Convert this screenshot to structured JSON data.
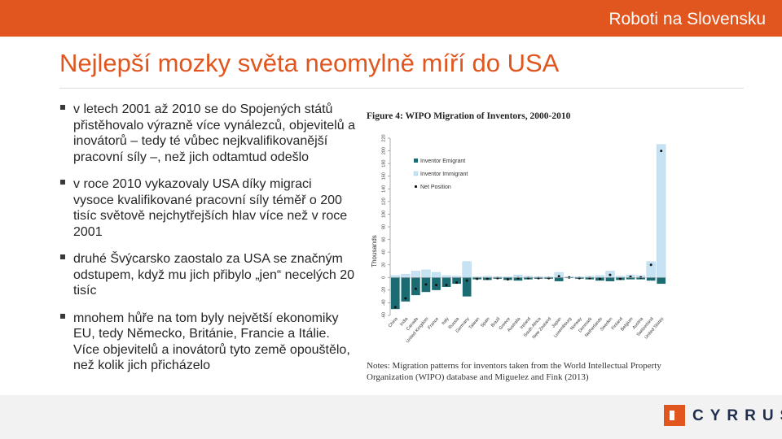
{
  "header": {
    "title": "Roboti na Slovensku"
  },
  "slide": {
    "title": "Nejlepší mozky světa neomylně míří do USA"
  },
  "bullets": [
    "v letech 2001 až 2010 se do Spojených států přistěhovalo výrazně více vynálezců, objevitelů a inovátorů – tedy té vůbec nejkvalifikovanější pracovní síly –, než jich odtamtud odešlo",
    "v roce 2010 vykazovaly USA díky migraci vysoce kvalifikované pracovní síly téměř o 200 tisíc světově nejchytřejších hlav více než v roce 2001",
    "druhé Švýcarsko zaostalo za USA se značným odstupem, když mu jich přibylo „jen“ necelých 20 tisíc",
    "mnohem hůře na tom byly největší ekonomiky EU, tedy Německo, Británie, Francie a Itálie. Více objevitelů a inovátorů tyto země opouštělo, než kolik jich přicházelo"
  ],
  "logo": {
    "text": "CYRRUS"
  },
  "figure": {
    "title": "Figure 4: WIPO Migration of Inventors, 2000-2010",
    "notes": "Notes: Migration patterns for inventors taken from the World Intellectual Property Organization (WIPO) database and Miguelez and Fink (2013)"
  },
  "chart_data": {
    "type": "bar",
    "title": "Figure 4: WIPO Migration of Inventors, 2000-2010",
    "ylabel": "Thousands",
    "xlabel": "",
    "ylim": [
      -60,
      220
    ],
    "yticks": [
      -60,
      -40,
      -20,
      0,
      20,
      40,
      60,
      80,
      100,
      120,
      140,
      160,
      180,
      200,
      220
    ],
    "grid": false,
    "legend_position": "top-left",
    "categories": [
      "China",
      "India",
      "Canada",
      "United Kingdom",
      "France",
      "Italy",
      "Russia",
      "Germany",
      "Taiwan",
      "Spain",
      "Brazil",
      "Greece",
      "Australia",
      "Ireland",
      "South Africa",
      "New Zealand",
      "Japan",
      "Luxembourg",
      "Norway",
      "Denmark",
      "Netherlands",
      "Sweden",
      "Finland",
      "Belgium",
      "Austria",
      "Switzerland",
      "United States"
    ],
    "series": [
      {
        "name": "Inventor Emigrant",
        "color": "#1b6b72",
        "values": [
          -50,
          -38,
          -28,
          -23,
          -20,
          -15,
          -10,
          -30,
          -3,
          -4,
          -2,
          -4,
          -5,
          -3,
          -2,
          -2,
          -6,
          -1,
          -2,
          -3,
          -5,
          -6,
          -4,
          -3,
          -3,
          -5,
          -10
        ]
      },
      {
        "name": "Inventor Immigrant",
        "color": "#c7e3f3",
        "values": [
          3,
          5,
          10,
          12,
          8,
          3,
          2,
          25,
          1,
          2,
          1,
          1,
          4,
          2,
          1,
          1,
          8,
          1,
          1,
          2,
          3,
          10,
          2,
          4,
          3,
          25,
          210
        ]
      },
      {
        "name": "Net Position",
        "color": "#111111",
        "values": [
          -47,
          -33,
          -18,
          -11,
          -12,
          -12,
          -8,
          -5,
          -2,
          -2,
          -1,
          -3,
          -1,
          -1,
          -1,
          -1,
          2,
          0,
          -1,
          -1,
          -2,
          4,
          -2,
          1,
          0,
          20,
          200
        ]
      }
    ]
  },
  "colors": {
    "accent": "#e1561e",
    "footer": "#f2f2f2",
    "logo_text": "#1f2d4e"
  }
}
